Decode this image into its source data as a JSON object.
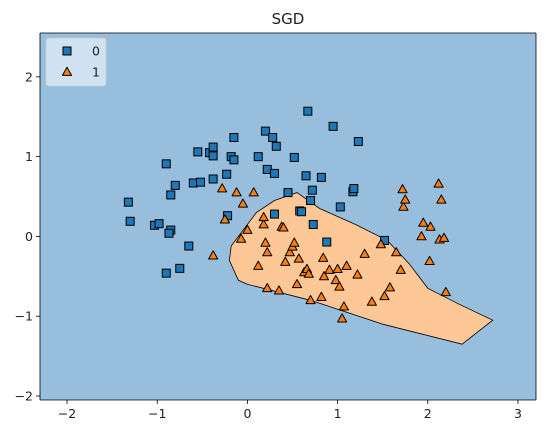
{
  "chart_data": {
    "type": "scatter",
    "title": "SGD",
    "xlabel": "",
    "ylabel": "",
    "xlim": [
      -2.3,
      3.2
    ],
    "ylim": [
      -2.05,
      2.55
    ],
    "xticks": [
      -2,
      -1,
      0,
      1,
      2,
      3
    ],
    "yticks": [
      -2,
      -1,
      0,
      1,
      2
    ],
    "grid": false,
    "legend_position": "top-left",
    "colors": {
      "background_region": "#97bedd",
      "decision_region": "#fec796",
      "class0": "#1f77b4",
      "class1": "#ff7f0e",
      "edge": "#000000"
    },
    "decision_region_polygon": [
      [
        0.55,
        0.55
      ],
      [
        0.8,
        0.35
      ],
      [
        1.2,
        0.15
      ],
      [
        1.55,
        -0.05
      ],
      [
        1.8,
        -0.35
      ],
      [
        2.0,
        -0.65
      ],
      [
        2.35,
        -0.85
      ],
      [
        2.72,
        -1.05
      ],
      [
        2.38,
        -1.35
      ],
      [
        1.5,
        -1.1
      ],
      [
        0.7,
        -0.8
      ],
      [
        0.0,
        -0.6
      ],
      [
        -0.1,
        -0.55
      ],
      [
        -0.2,
        -0.3
      ],
      [
        -0.18,
        -0.12
      ],
      [
        0.1,
        0.3
      ],
      [
        0.3,
        0.45
      ]
    ],
    "series": [
      {
        "name": "0",
        "marker": "square",
        "points": [
          [
            -1.32,
            0.43
          ],
          [
            -1.3,
            0.19
          ],
          [
            -1.03,
            0.14
          ],
          [
            -0.98,
            0.16
          ],
          [
            -0.9,
            0.91
          ],
          [
            -0.85,
            0.52
          ],
          [
            -0.8,
            0.64
          ],
          [
            -0.85,
            0.08
          ],
          [
            -0.87,
            0.04
          ],
          [
            -0.9,
            -0.46
          ],
          [
            -0.75,
            -0.4
          ],
          [
            -0.65,
            -0.12
          ],
          [
            -0.6,
            0.67
          ],
          [
            -0.55,
            1.06
          ],
          [
            -0.52,
            0.68
          ],
          [
            -0.42,
            1.05
          ],
          [
            -0.38,
            1.12
          ],
          [
            -0.38,
            1.01
          ],
          [
            -0.38,
            0.72
          ],
          [
            -0.23,
            0.78
          ],
          [
            -0.22,
            0.26
          ],
          [
            -0.18,
            1.0
          ],
          [
            -0.15,
            0.96
          ],
          [
            -0.15,
            1.24
          ],
          [
            0.12,
            1.0
          ],
          [
            0.2,
            1.32
          ],
          [
            0.22,
            0.84
          ],
          [
            0.28,
            1.24
          ],
          [
            0.3,
            0.79
          ],
          [
            0.32,
            1.13
          ],
          [
            0.3,
            0.28
          ],
          [
            0.45,
            0.55
          ],
          [
            0.52,
            0.99
          ],
          [
            0.58,
            0.32
          ],
          [
            0.6,
            0.31
          ],
          [
            0.65,
            0.76
          ],
          [
            0.67,
            1.57
          ],
          [
            0.7,
            0.45
          ],
          [
            0.72,
            0.58
          ],
          [
            0.73,
            0.15
          ],
          [
            0.82,
            0.74
          ],
          [
            0.88,
            -0.07
          ],
          [
            0.95,
            1.38
          ],
          [
            1.03,
            0.37
          ],
          [
            1.17,
            0.56
          ],
          [
            1.18,
            0.6
          ],
          [
            1.23,
            1.19
          ],
          [
            1.52,
            -0.05
          ]
        ]
      },
      {
        "name": "1",
        "marker": "triangle",
        "points": [
          [
            -0.38,
            -0.24
          ],
          [
            -0.28,
            0.6
          ],
          [
            -0.25,
            0.21
          ],
          [
            -0.12,
            0.55
          ],
          [
            -0.07,
            -0.03
          ],
          [
            -0.05,
            0.41
          ],
          [
            0.0,
            0.08
          ],
          [
            0.07,
            0.55
          ],
          [
            0.12,
            -0.37
          ],
          [
            0.18,
            0.15
          ],
          [
            0.18,
            0.24
          ],
          [
            0.2,
            -0.08
          ],
          [
            0.22,
            -0.2
          ],
          [
            0.22,
            -0.65
          ],
          [
            0.35,
            -0.68
          ],
          [
            0.38,
            0.12
          ],
          [
            0.4,
            0.11
          ],
          [
            0.42,
            -0.32
          ],
          [
            0.47,
            -0.2
          ],
          [
            0.5,
            -0.13
          ],
          [
            0.52,
            -0.08
          ],
          [
            0.55,
            -0.6
          ],
          [
            0.57,
            -0.28
          ],
          [
            0.63,
            -0.45
          ],
          [
            0.66,
            -0.41
          ],
          [
            0.68,
            -0.47
          ],
          [
            0.7,
            -0.8
          ],
          [
            0.82,
            -0.76
          ],
          [
            0.84,
            -0.27
          ],
          [
            0.85,
            -0.5
          ],
          [
            0.91,
            -0.42
          ],
          [
            0.98,
            -0.55
          ],
          [
            1.0,
            -0.41
          ],
          [
            1.02,
            -0.63
          ],
          [
            1.05,
            -1.03
          ],
          [
            1.07,
            -0.88
          ],
          [
            1.1,
            -0.37
          ],
          [
            1.22,
            -0.48
          ],
          [
            1.3,
            -0.22
          ],
          [
            1.38,
            -0.82
          ],
          [
            1.48,
            -0.1
          ],
          [
            1.52,
            -0.75
          ],
          [
            1.58,
            -0.64
          ],
          [
            1.65,
            -0.2
          ],
          [
            1.7,
            -0.42
          ],
          [
            1.72,
            0.59
          ],
          [
            1.73,
            0.37
          ],
          [
            1.75,
            0.46
          ],
          [
            1.93,
            0.0
          ],
          [
            1.95,
            0.17
          ],
          [
            2.02,
            -0.31
          ],
          [
            2.03,
            0.12
          ],
          [
            2.12,
            0.66
          ],
          [
            2.13,
            -0.04
          ],
          [
            2.15,
            0.46
          ],
          [
            2.18,
            -0.02
          ],
          [
            2.2,
            -0.7
          ]
        ]
      }
    ]
  }
}
